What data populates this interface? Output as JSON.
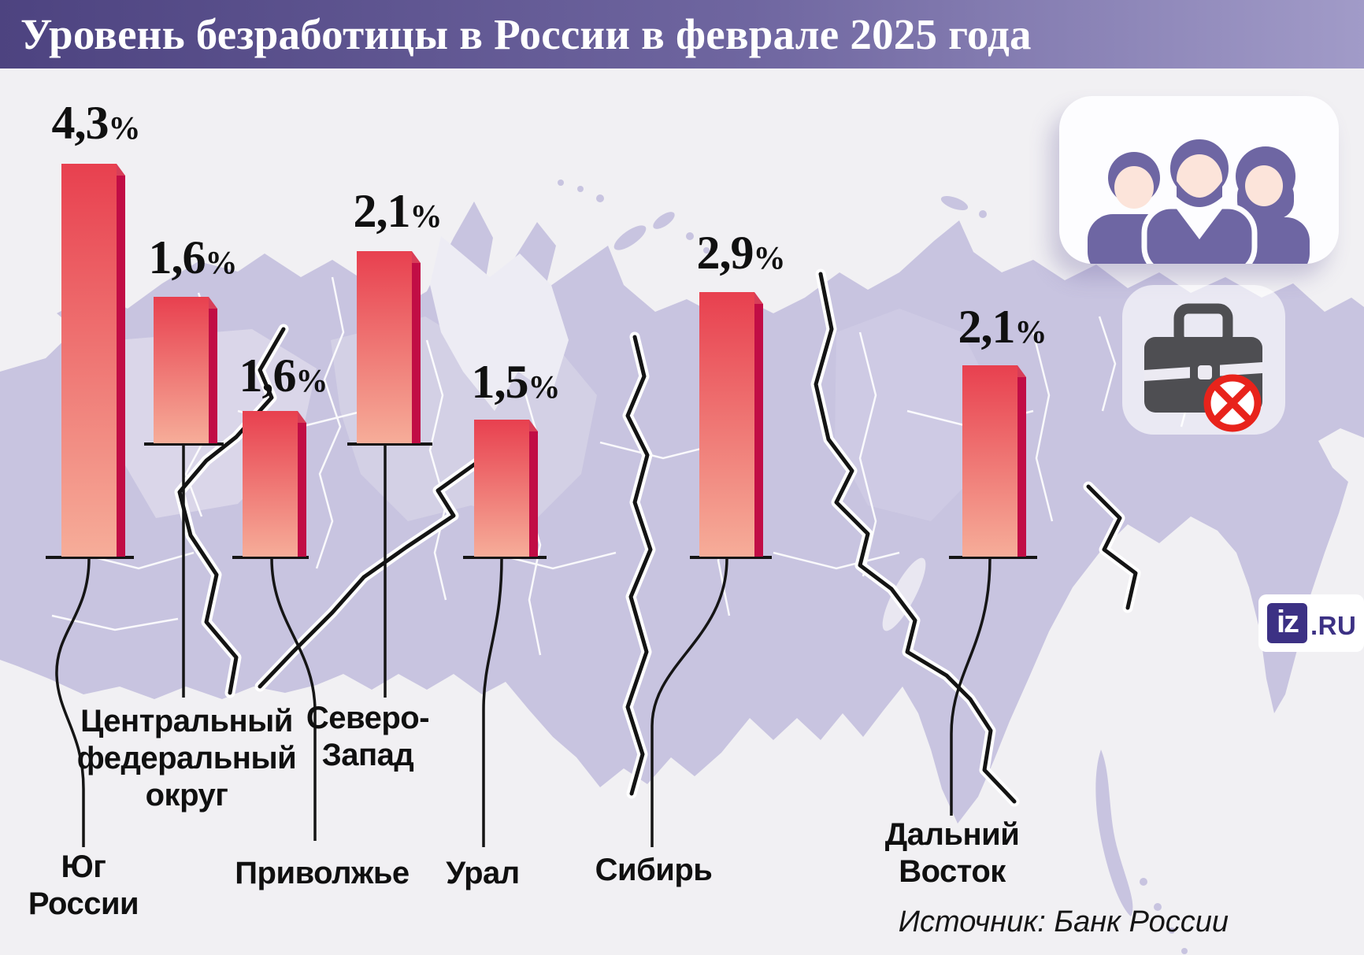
{
  "title": "Уровень безработицы в России в феврале 2025 года",
  "source": "Источник: Банк России",
  "logo": {
    "box_text": "iz",
    "suffix": ".RU"
  },
  "icons": {
    "people_icon": "three-people-silhouettes",
    "no_work_icon": "briefcase-crossed-out"
  },
  "colors": {
    "title_bar_left": "#4d4380",
    "title_bar_right": "#a19bc8",
    "bar_top": "#e8404f",
    "bar_bottom": "#f6ad99",
    "bar_side": "#c10d45",
    "map_land": "#c8c4e0",
    "background": "#f1f0f3",
    "accent_red": "#e8231b",
    "logo_purple": "#3c3184"
  },
  "chart_data": {
    "type": "bar",
    "title": "Уровень безработицы в России в феврале 2025 года",
    "unit": "%",
    "categories": [
      "Юг России",
      "Центральный федеральный округ",
      "Приволжье",
      "Северо-Запад",
      "Урал",
      "Сибирь",
      "Дальний Восток"
    ],
    "categories_multiline": [
      [
        "Юг",
        "России"
      ],
      [
        "Центральный",
        "федеральный",
        "округ"
      ],
      [
        "Приволжье"
      ],
      [
        "Северо-",
        "Запад"
      ],
      [
        "Урал"
      ],
      [
        "Сибирь"
      ],
      [
        "Дальний",
        "Восток"
      ]
    ],
    "values": [
      4.3,
      1.6,
      1.6,
      2.1,
      1.5,
      2.9,
      2.1
    ],
    "value_labels": [
      "4,3",
      "1,6",
      "1,6",
      "2,1",
      "1,5",
      "2,9",
      "2,1"
    ],
    "layout": "3d columns placed over a map of Russia, one per federal district, leader lines to district names",
    "source": "Банк России"
  }
}
